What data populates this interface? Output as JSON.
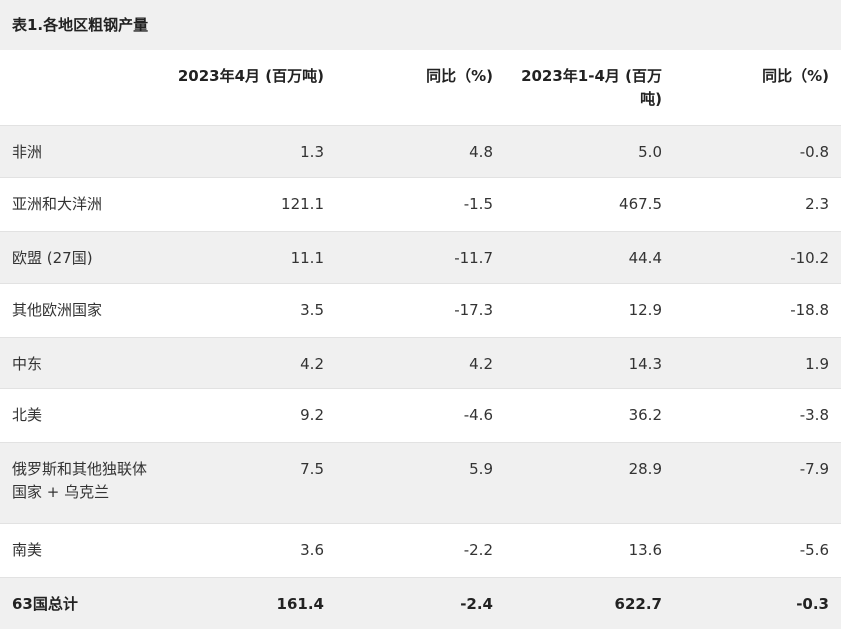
{
  "caption": "表1.各地区粗钢产量",
  "headers": [
    "",
    "2023年4月 (百万吨)",
    "同比（%)",
    "2023年1-4月 (百万吨)",
    "同比（%)"
  ],
  "rows": [
    {
      "region": "非洲",
      "apr": "1.3",
      "yoy_apr": "4.8",
      "ytd": "5.0",
      "yoy_ytd": "-0.8"
    },
    {
      "region": "亚洲和大洋洲",
      "apr": "121.1",
      "yoy_apr": "-1.5",
      "ytd": "467.5",
      "yoy_ytd": "2.3"
    },
    {
      "region": "欧盟 (27国)",
      "apr": "11.1",
      "yoy_apr": "-11.7",
      "ytd": "44.4",
      "yoy_ytd": "-10.2"
    },
    {
      "region": "其他欧洲国家",
      "apr": "3.5",
      "yoy_apr": "-17.3",
      "ytd": "12.9",
      "yoy_ytd": "-18.8"
    },
    {
      "region": "中东",
      "apr": "4.2",
      "yoy_apr": "4.2",
      "ytd": "14.3",
      "yoy_ytd": "1.9"
    },
    {
      "region": "北美",
      "apr": "9.2",
      "yoy_apr": "-4.6",
      "ytd": "36.2",
      "yoy_ytd": "-3.8"
    },
    {
      "region": "俄罗斯和其他独联体国家 + 乌克兰",
      "apr": "7.5",
      "yoy_apr": "5.9",
      "ytd": "28.9",
      "yoy_ytd": "-7.9"
    },
    {
      "region": "南美",
      "apr": "3.6",
      "yoy_apr": "-2.2",
      "ytd": "13.6",
      "yoy_ytd": "-5.6"
    },
    {
      "region": "63国总计",
      "apr": "161.4",
      "yoy_apr": "-2.4",
      "ytd": "622.7",
      "yoy_ytd": "-0.3"
    }
  ],
  "colors": {
    "shade": "#f0f0f0",
    "border": "#e2e2e2",
    "text": "#333333"
  }
}
